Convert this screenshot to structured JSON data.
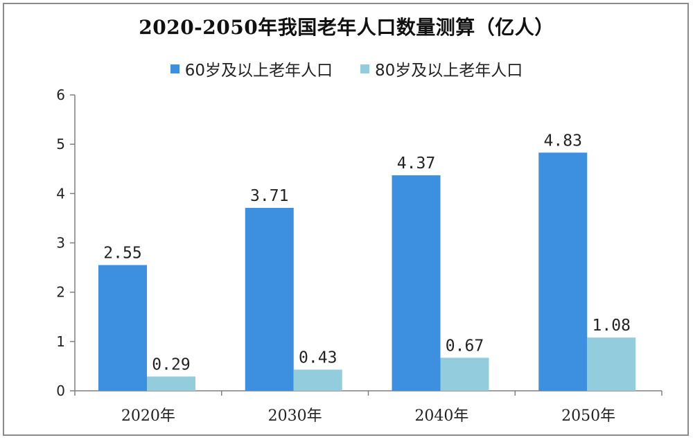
{
  "chart_data": {
    "type": "bar",
    "title": "2020-2050年我国老年人口数量测算（亿人）",
    "categories": [
      "2020年",
      "2030年",
      "2040年",
      "2050年"
    ],
    "series": [
      {
        "name": "60岁及以上老年人口",
        "values": [
          2.55,
          3.71,
          4.37,
          4.83
        ],
        "color": "#3d8fdf"
      },
      {
        "name": "80岁及以上老年人口",
        "values": [
          0.29,
          0.43,
          0.67,
          1.08
        ],
        "color": "#93cddd"
      }
    ],
    "ylim": [
      0,
      6
    ],
    "yticks": [
      0,
      1,
      2,
      3,
      4,
      5,
      6
    ],
    "value_labels": [
      [
        "2.55",
        "3.71",
        "4.37",
        "4.83"
      ],
      [
        "0.29",
        "0.43",
        "0.67",
        "1.08"
      ]
    ],
    "xlabel": "",
    "ylabel": "",
    "grid": false,
    "legend_position": "top-center"
  }
}
